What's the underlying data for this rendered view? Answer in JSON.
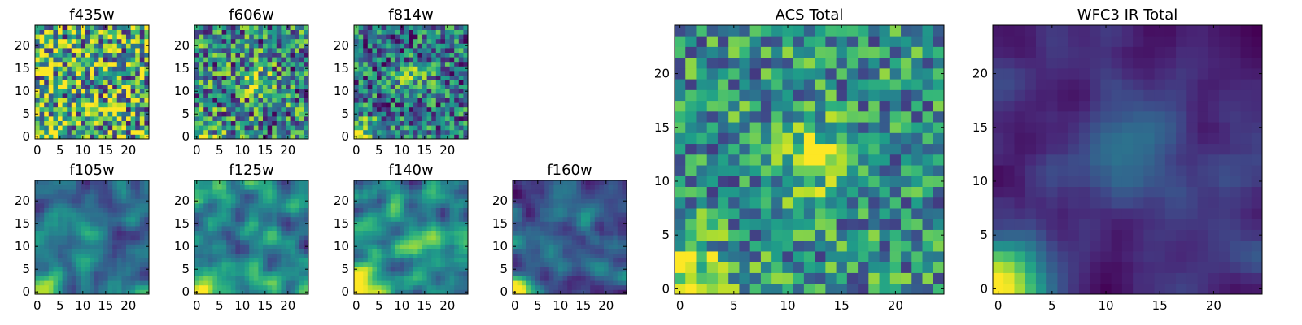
{
  "chart_data": [
    {
      "type": "heatmap",
      "title": "f435w",
      "grid": [
        25,
        25
      ],
      "xticks": [
        "0",
        "5",
        "10",
        "15",
        "20"
      ],
      "yticks": [
        "0",
        "5",
        "10",
        "15",
        "20"
      ],
      "xlim": [
        0,
        25
      ],
      "ylim": [
        0,
        25
      ],
      "colormap": "viridis",
      "pattern": "noisy",
      "corner_brightness": 0.3,
      "center_brightness": 0.05,
      "noise": 0.55,
      "base": 0.62
    },
    {
      "type": "heatmap",
      "title": "f606w",
      "grid": [
        25,
        25
      ],
      "xticks": [
        "0",
        "5",
        "10",
        "15",
        "20"
      ],
      "yticks": [
        "0",
        "5",
        "10",
        "15",
        "20"
      ],
      "xlim": [
        0,
        25
      ],
      "ylim": [
        0,
        25
      ],
      "colormap": "viridis",
      "pattern": "noisy",
      "corner_brightness": 0.45,
      "center_brightness": 0.25,
      "noise": 0.45,
      "base": 0.45
    },
    {
      "type": "heatmap",
      "title": "f814w",
      "grid": [
        25,
        25
      ],
      "xticks": [
        "0",
        "5",
        "10",
        "15",
        "20"
      ],
      "yticks": [
        "0",
        "5",
        "10",
        "15",
        "20"
      ],
      "xlim": [
        0,
        25
      ],
      "ylim": [
        0,
        25
      ],
      "colormap": "viridis",
      "pattern": "noisy",
      "corner_brightness": 0.6,
      "center_brightness": 0.28,
      "noise": 0.4,
      "base": 0.38
    },
    {
      "type": "heatmap",
      "title": "f105w",
      "grid": [
        25,
        25
      ],
      "xticks": [
        "0",
        "5",
        "10",
        "15",
        "20"
      ],
      "yticks": [
        "0",
        "5",
        "10",
        "15",
        "20"
      ],
      "xlim": [
        0,
        25
      ],
      "ylim": [
        0,
        25
      ],
      "colormap": "viridis",
      "pattern": "smooth",
      "corner_brightness": 0.7,
      "center_brightness": 0.25,
      "noise": 0.3,
      "base": 0.4
    },
    {
      "type": "heatmap",
      "title": "f125w",
      "grid": [
        25,
        25
      ],
      "xticks": [
        "0",
        "5",
        "10",
        "15",
        "20"
      ],
      "yticks": [
        "0",
        "5",
        "10",
        "15",
        "20"
      ],
      "xlim": [
        0,
        25
      ],
      "ylim": [
        0,
        25
      ],
      "colormap": "viridis",
      "pattern": "smooth",
      "corner_brightness": 0.7,
      "center_brightness": 0.22,
      "noise": 0.34,
      "base": 0.44
    },
    {
      "type": "heatmap",
      "title": "f140w",
      "grid": [
        25,
        25
      ],
      "xticks": [
        "0",
        "5",
        "10",
        "15",
        "20"
      ],
      "yticks": [
        "0",
        "5",
        "10",
        "15",
        "20"
      ],
      "xlim": [
        0,
        25
      ],
      "ylim": [
        0,
        25
      ],
      "colormap": "viridis",
      "pattern": "smooth",
      "corner_brightness": 0.7,
      "center_brightness": 0.25,
      "noise": 0.34,
      "base": 0.45
    },
    {
      "type": "heatmap",
      "title": "f160w",
      "grid": [
        25,
        25
      ],
      "xticks": [
        "0",
        "5",
        "10",
        "15",
        "20"
      ],
      "yticks": [
        "0",
        "5",
        "10",
        "15",
        "20"
      ],
      "xlim": [
        0,
        25
      ],
      "ylim": [
        0,
        25
      ],
      "colormap": "viridis",
      "pattern": "ring",
      "corner_brightness": 0.7,
      "center_brightness": 0.1,
      "noise": 0.28,
      "base": 0.3
    },
    {
      "type": "heatmap",
      "title": "ACS Total",
      "grid": [
        25,
        25
      ],
      "xticks": [
        "0",
        "5",
        "10",
        "15",
        "20"
      ],
      "yticks": [
        "0",
        "5",
        "10",
        "15",
        "20"
      ],
      "xlim": [
        0,
        25
      ],
      "ylim": [
        0,
        25
      ],
      "colormap": "viridis",
      "pattern": "noisy",
      "corner_brightness": 0.55,
      "center_brightness": 0.35,
      "noise": 0.34,
      "base": 0.5
    },
    {
      "type": "heatmap",
      "title": "WFC3 IR Total",
      "grid": [
        25,
        25
      ],
      "xticks": [
        "0",
        "5",
        "10",
        "15",
        "20"
      ],
      "yticks": [
        "0",
        "5",
        "10",
        "15",
        "20"
      ],
      "xlim": [
        0,
        25
      ],
      "ylim": [
        0,
        25
      ],
      "colormap": "viridis",
      "pattern": "smooth",
      "corner_brightness": 0.85,
      "center_brightness": 0.3,
      "noise": 0.14,
      "base": 0.14
    }
  ]
}
